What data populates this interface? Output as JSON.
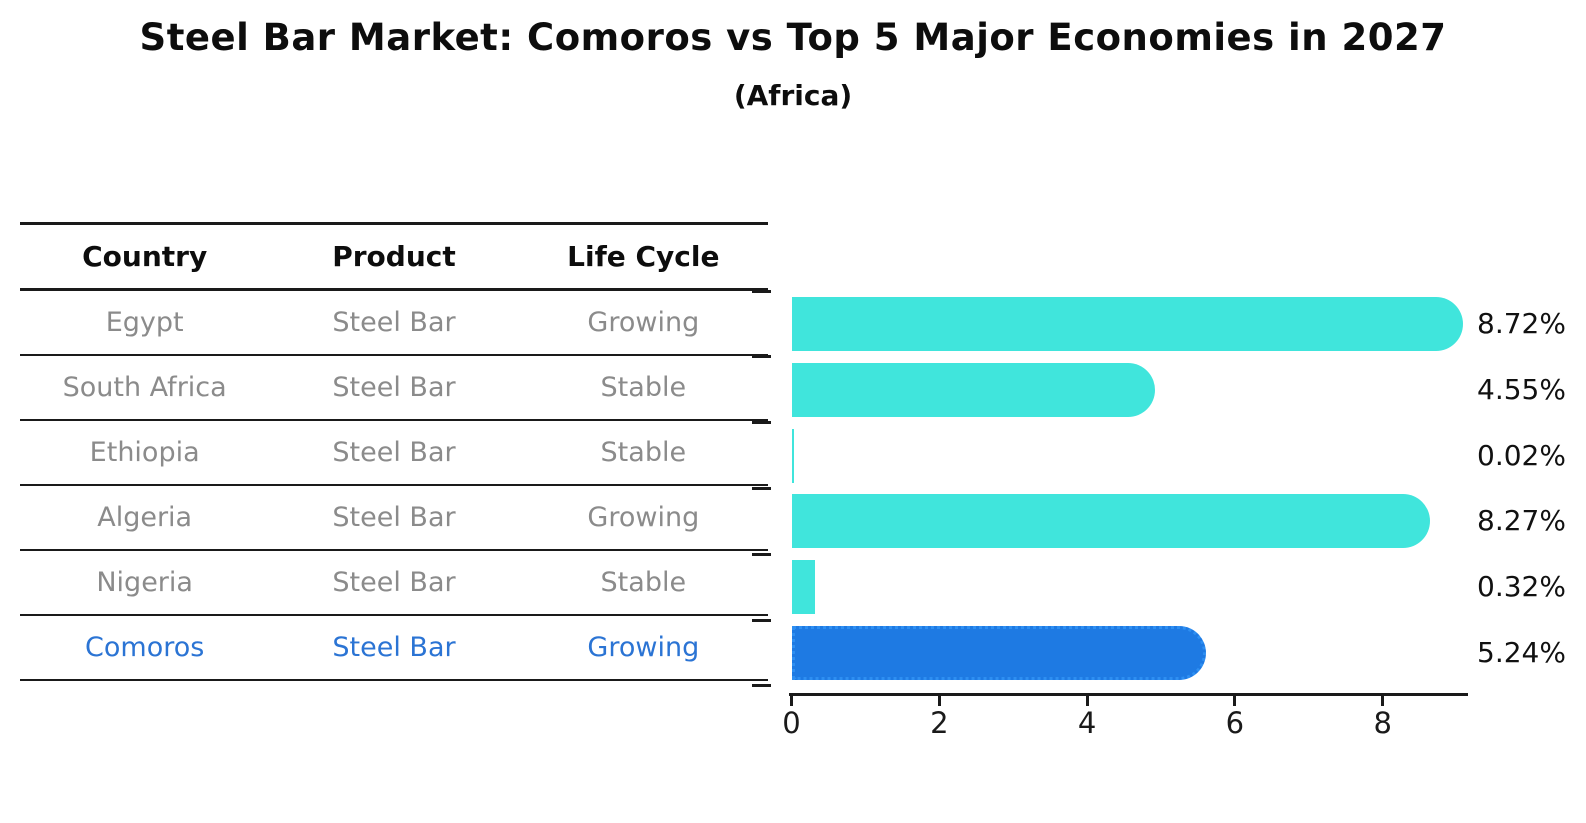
{
  "title": "Steel Bar Market: Comoros vs Top 5 Major Economies in 2027",
  "subtitle": "(Africa)",
  "table": {
    "headers": [
      "Country",
      "Product",
      "Life Cycle"
    ],
    "rows": [
      {
        "country": "Egypt",
        "product": "Steel Bar",
        "life_cycle": "Growing",
        "highlight": false
      },
      {
        "country": "South Africa",
        "product": "Steel Bar",
        "life_cycle": "Stable",
        "highlight": false
      },
      {
        "country": "Ethiopia",
        "product": "Steel Bar",
        "life_cycle": "Stable",
        "highlight": false
      },
      {
        "country": "Algeria",
        "product": "Steel Bar",
        "life_cycle": "Growing",
        "highlight": false
      },
      {
        "country": "Nigeria",
        "product": "Steel Bar",
        "life_cycle": "Stable",
        "highlight": true
      }
    ]
  },
  "chart_data": {
    "type": "bar",
    "orientation": "horizontal",
    "categories": [
      "Egypt",
      "South Africa",
      "Ethiopia",
      "Algeria",
      "Nigeria",
      "Comoros"
    ],
    "values": [
      8.72,
      4.55,
      0.02,
      8.27,
      0.32,
      5.24
    ],
    "value_labels": [
      "8.72%",
      "4.55%",
      "0.02%",
      "8.27%",
      "0.32%",
      "5.24%"
    ],
    "highlight_index": 5,
    "xlim": [
      0,
      9.15
    ],
    "xticks": [
      "0",
      "2",
      "4",
      "6",
      "8"
    ],
    "grid": false,
    "legend": false,
    "bar_color_default": "#40e5dc",
    "bar_color_highlight": "#1e7ae3",
    "highlight_edge": "dotted"
  },
  "colors": {
    "text": "#0d0d0d",
    "table_body_text": "#8b8b8b",
    "highlight_text": "#2b74d4",
    "axis": "#1a1a1a"
  }
}
